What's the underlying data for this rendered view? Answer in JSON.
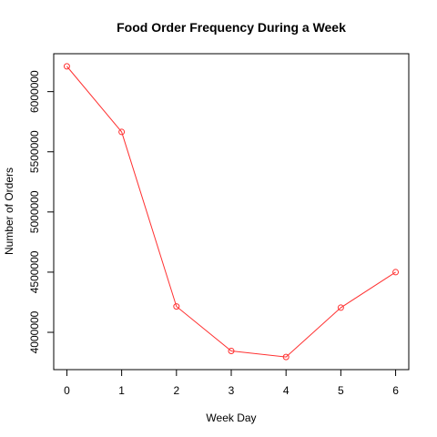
{
  "chart_data": {
    "type": "line",
    "title": "Food Order Frequency During a Week",
    "xlabel": "Week Day",
    "ylabel": "Number of Orders",
    "x": [
      0,
      1,
      2,
      3,
      4,
      5,
      6
    ],
    "series": [
      {
        "values": [
          6210000,
          5665000,
          4215000,
          3845000,
          3795000,
          4205000,
          4500000
        ],
        "color": "#ff3030"
      }
    ],
    "xticks": [
      0,
      1,
      2,
      3,
      4,
      5,
      6
    ],
    "yticks": [
      4000000,
      4500000,
      5000000,
      5500000,
      6000000
    ],
    "xlim": [
      -0.24,
      6.24
    ],
    "ylim": [
      3690000,
      6315000
    ],
    "grid": false,
    "markers": "open-circle"
  }
}
